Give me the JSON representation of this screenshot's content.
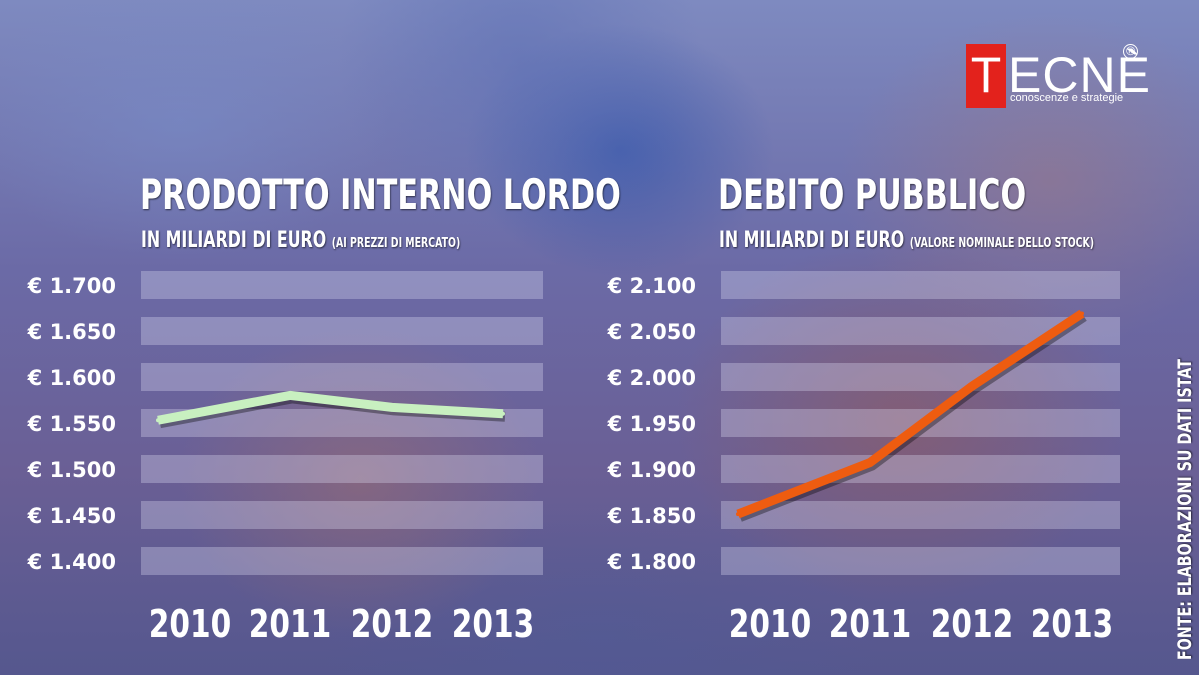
{
  "logo": {
    "letter": "T",
    "rest": "ECNÈ",
    "registered": "®",
    "tagline": "conoscenze e strategie"
  },
  "source": "FONTE: ELABORAZIONI SU DATI ISTAT",
  "chart_data": [
    {
      "type": "line",
      "title": "PRODOTTO INTERNO LORDO",
      "subtitle": "IN MILIARDI DI EURO",
      "subtitle_note": "(AI PREZZI DI MERCATO)",
      "categories": [
        "2010",
        "2011",
        "2012",
        "2013"
      ],
      "values": [
        1553,
        1580,
        1567,
        1560
      ],
      "yticks": [
        "€ 1.700",
        "€ 1.650",
        "€ 1.600",
        "€ 1.550",
        "€ 1.500",
        "€ 1.450",
        "€ 1.400"
      ],
      "ylim": [
        1400,
        1700
      ],
      "line_color": "#c8f0c0",
      "grid": true
    },
    {
      "type": "line",
      "title": "DEBITO PUBBLICO",
      "subtitle": "IN MILIARDI DI EURO",
      "subtitle_note": "(VALORE NOMINALE DELLO STOCK)",
      "categories": [
        "2010",
        "2011",
        "2012",
        "2013"
      ],
      "values": [
        1851,
        1907,
        1990,
        2069
      ],
      "yticks": [
        "€ 2.100",
        "€ 2.050",
        "€ 2.000",
        "€ 1.950",
        "€ 1.900",
        "€ 1.850",
        "€ 1.800"
      ],
      "ylim": [
        1800,
        2100
      ],
      "line_color": "#ee5c10",
      "grid": true
    }
  ]
}
